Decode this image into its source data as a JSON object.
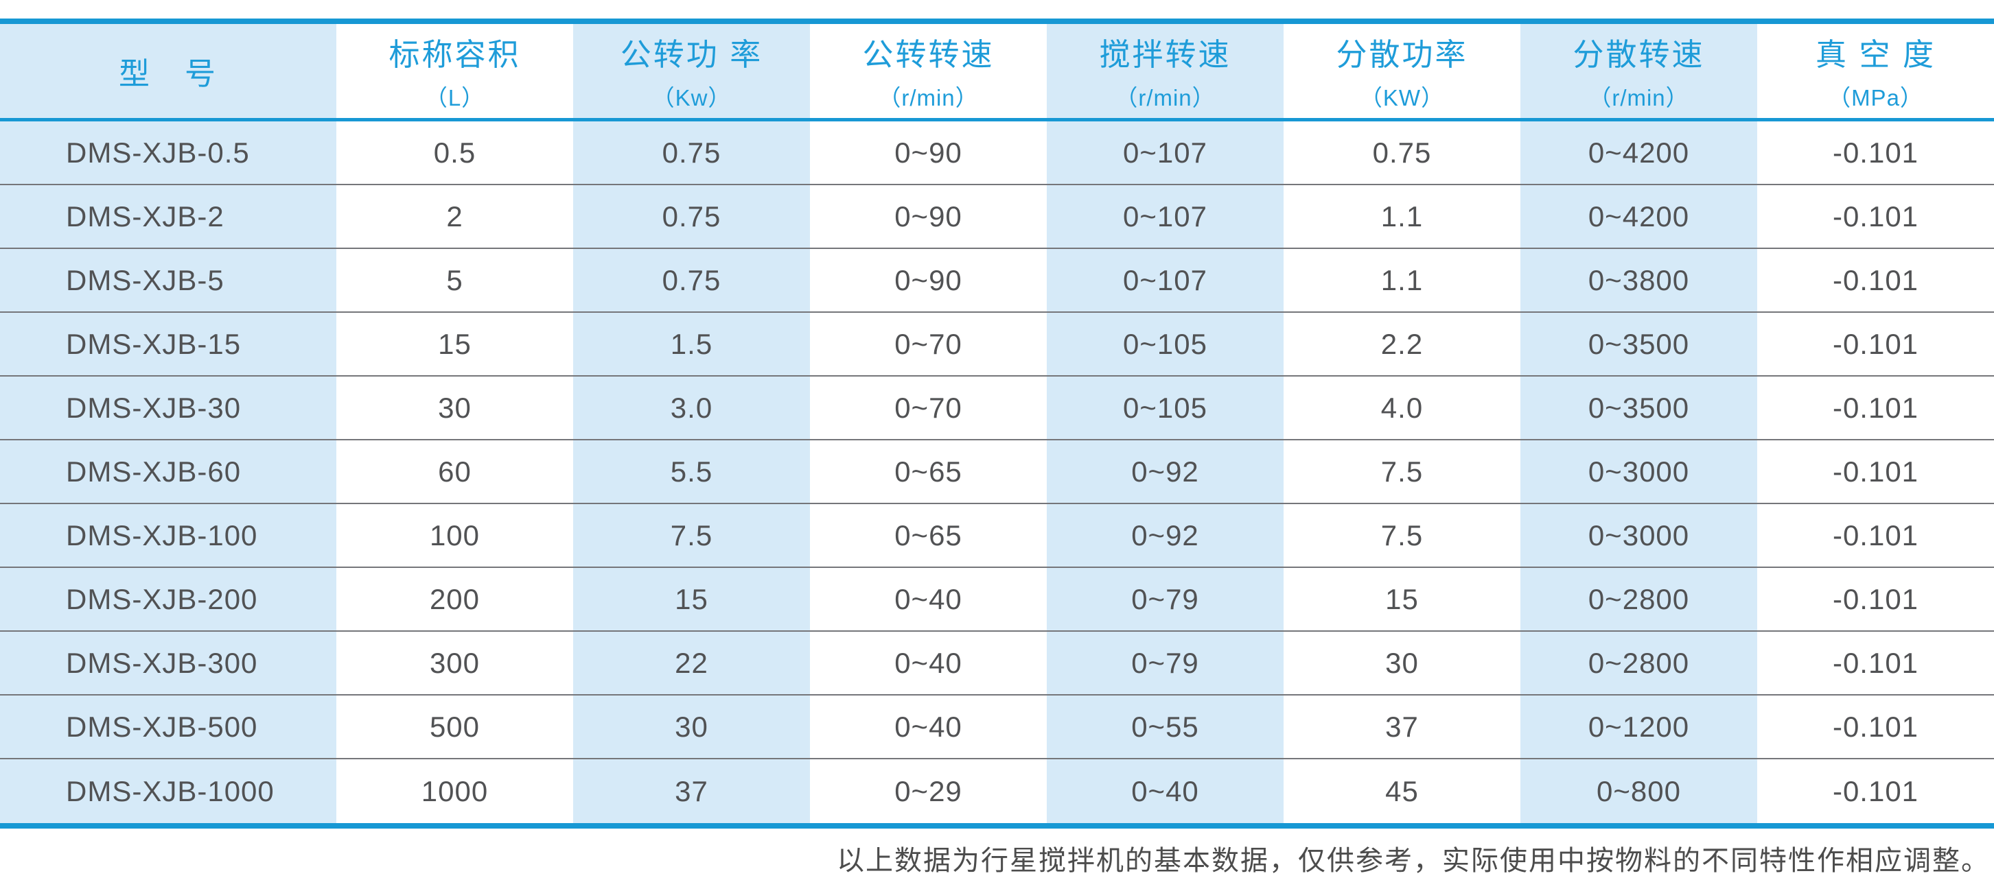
{
  "chart_data": {
    "type": "table",
    "columns": [
      {
        "label": "型　号",
        "unit": ""
      },
      {
        "label": "标称容积",
        "unit": "（L）"
      },
      {
        "label": "公转功 率",
        "unit": "（Kw）"
      },
      {
        "label": "公转转速",
        "unit": "（r/min）"
      },
      {
        "label": "搅拌转速",
        "unit": "（r/min）"
      },
      {
        "label": "分散功率",
        "unit": "（KW）"
      },
      {
        "label": "分散转速",
        "unit": "（r/min）"
      },
      {
        "label": "真 空 度",
        "unit": "（MPa）"
      }
    ],
    "rows": [
      [
        "DMS-XJB-0.5",
        "0.5",
        "0.75",
        "0~90",
        "0~107",
        "0.75",
        "0~4200",
        "-0.101"
      ],
      [
        "DMS-XJB-2",
        "2",
        "0.75",
        "0~90",
        "0~107",
        "1.1",
        "0~4200",
        "-0.101"
      ],
      [
        "DMS-XJB-5",
        "5",
        "0.75",
        "0~90",
        "0~107",
        "1.1",
        "0~3800",
        "-0.101"
      ],
      [
        "DMS-XJB-15",
        "15",
        "1.5",
        "0~70",
        "0~105",
        "2.2",
        "0~3500",
        "-0.101"
      ],
      [
        "DMS-XJB-30",
        "30",
        "3.0",
        "0~70",
        "0~105",
        "4.0",
        "0~3500",
        "-0.101"
      ],
      [
        "DMS-XJB-60",
        "60",
        "5.5",
        "0~65",
        "0~92",
        "7.5",
        "0~3000",
        "-0.101"
      ],
      [
        "DMS-XJB-100",
        "100",
        "7.5",
        "0~65",
        "0~92",
        "7.5",
        "0~3000",
        "-0.101"
      ],
      [
        "DMS-XJB-200",
        "200",
        "15",
        "0~40",
        "0~79",
        "15",
        "0~2800",
        "-0.101"
      ],
      [
        "DMS-XJB-300",
        "300",
        "22",
        "0~40",
        "0~79",
        "30",
        "0~2800",
        "-0.101"
      ],
      [
        "DMS-XJB-500",
        "500",
        "30",
        "0~40",
        "0~55",
        "37",
        "0~1200",
        "-0.101"
      ],
      [
        "DMS-XJB-1000",
        "1000",
        "37",
        "0~29",
        "0~40",
        "45",
        "0~800",
        "-0.101"
      ]
    ],
    "footnote": "以上数据为行星搅拌机的基本数据，仅供参考，实际使用中按物料的不同特性作相应调整。"
  },
  "colors": {
    "accent_blue": "#1798d4",
    "header_text_blue": "#1e9cd9",
    "stripe_light_blue": "#d6eaf8",
    "body_text_gray": "#515254",
    "row_separator_gray": "#75767a",
    "footnote_gray": "#4c4c4c"
  }
}
